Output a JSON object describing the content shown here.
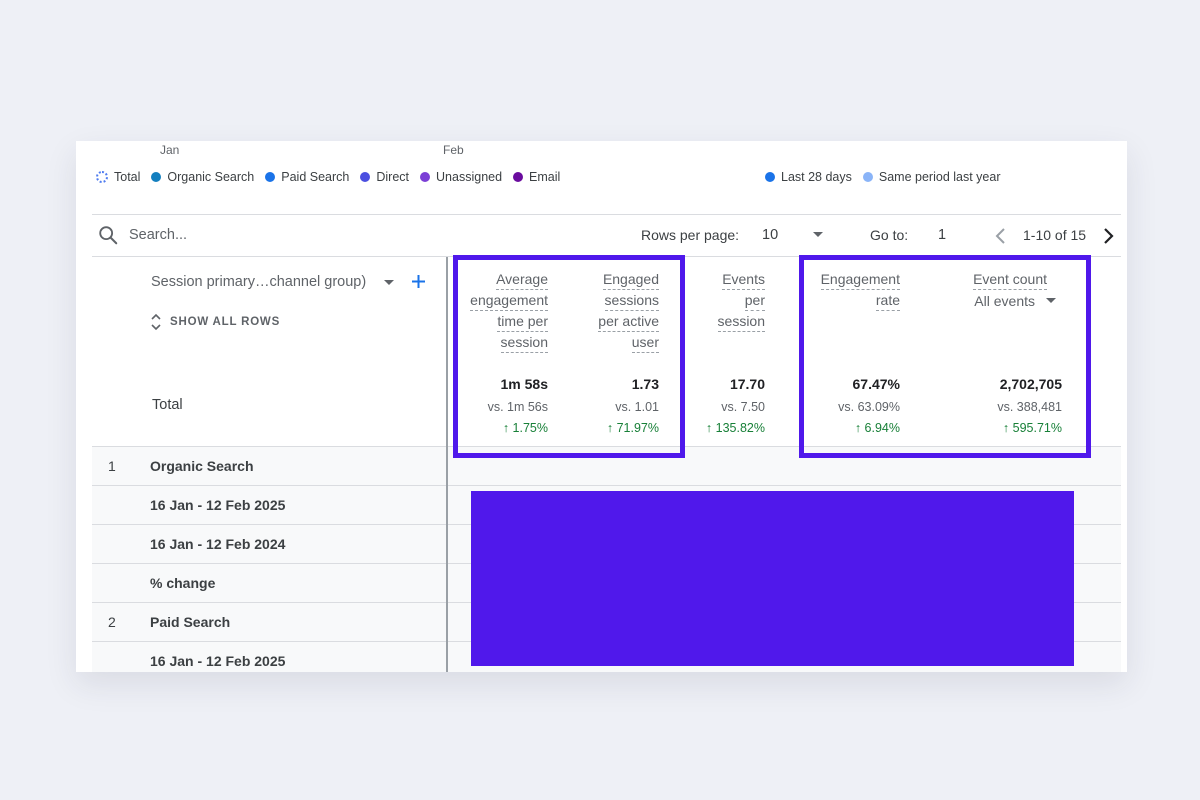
{
  "chart_axis": {
    "months": [
      "Jan",
      "Feb"
    ]
  },
  "legend": {
    "series": [
      {
        "label": "Total",
        "color": "#4f7cf0",
        "style": "dotted-ring"
      },
      {
        "label": "Organic Search",
        "color": "#137fbf"
      },
      {
        "label": "Paid Search",
        "color": "#1a73e8"
      },
      {
        "label": "Direct",
        "color": "#4b4fe0"
      },
      {
        "label": "Unassigned",
        "color": "#7b3fd6"
      },
      {
        "label": "Email",
        "color": "#6a0c9e"
      }
    ],
    "periods": [
      {
        "label": "Last 28 days",
        "color": "#1a73e8"
      },
      {
        "label": "Same period last year",
        "color": "#8ab4f8"
      }
    ]
  },
  "toolbar": {
    "search_placeholder": "Search...",
    "rows_per_page_label": "Rows per page:",
    "rows_per_page_value": "10",
    "goto_label": "Go to:",
    "goto_value": "1",
    "range_text": "1-10 of 15",
    "icons": [
      "search-icon",
      "chevron-down-icon",
      "chevron-left-icon",
      "chevron-right-icon"
    ]
  },
  "table": {
    "dimension_label": "Session primary…channel group)",
    "show_all_rows": "SHOW ALL ROWS",
    "total_label": "Total",
    "columns": [
      {
        "header": [
          "Average",
          "engagement",
          "time per",
          "session"
        ],
        "value": "1m 58s",
        "vs": "vs. 1m 56s",
        "change": "↑ 1.75%"
      },
      {
        "header": [
          "Engaged",
          "sessions",
          "per active",
          "user"
        ],
        "value": "1.73",
        "vs": "vs. 1.01",
        "change": "↑ 71.97%"
      },
      {
        "header": [
          "Events",
          "per",
          "session"
        ],
        "value": "17.70",
        "vs": "vs. 7.50",
        "change": "↑ 135.82%"
      },
      {
        "header": [
          "Engagement",
          "rate"
        ],
        "value": "67.47%",
        "vs": "vs. 63.09%",
        "change": "↑ 6.94%"
      },
      {
        "header": [
          "Event count"
        ],
        "sub": "All events",
        "value": "2,702,705",
        "vs": "vs. 388,481",
        "change": "↑ 595.71%"
      }
    ],
    "rows": [
      {
        "num": "1",
        "label": "Organic Search"
      },
      {
        "num": "",
        "label": "16 Jan - 12 Feb 2025"
      },
      {
        "num": "",
        "label": "16 Jan - 12 Feb 2024"
      },
      {
        "num": "",
        "label": "% change"
      },
      {
        "num": "2",
        "label": "Paid Search"
      },
      {
        "num": "",
        "label": "16 Jan - 12 Feb 2025"
      }
    ]
  },
  "colors": {
    "highlight": "#4f18eb",
    "positive_change": "#188038",
    "accent_plus": "#1a73e8"
  }
}
